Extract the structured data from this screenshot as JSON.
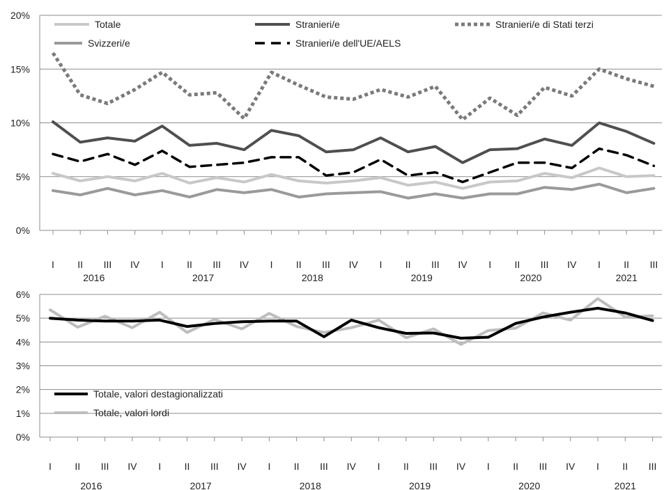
{
  "chart_data": [
    {
      "type": "line",
      "x_quarters": [
        "I",
        "II",
        "III",
        "IV",
        "I",
        "II",
        "III",
        "IV",
        "I",
        "II",
        "III",
        "IV",
        "I",
        "II",
        "III",
        "IV",
        "I",
        "II",
        "III",
        "IV",
        "I",
        "II",
        "III"
      ],
      "x_years": [
        "2016",
        "2017",
        "2018",
        "2019",
        "2020",
        "2021"
      ],
      "y_ticks": [
        "0%",
        "5%",
        "10%",
        "15%",
        "20%"
      ],
      "ylim": [
        0,
        20
      ],
      "y_unit": "%",
      "grid": true,
      "series": [
        {
          "name": "Totale",
          "style": "solid",
          "color": "#c8c8c8",
          "values": [
            5.3,
            4.6,
            5.0,
            4.6,
            5.3,
            4.4,
            4.9,
            4.5,
            5.2,
            4.6,
            4.4,
            4.6,
            4.9,
            4.2,
            4.5,
            3.9,
            4.5,
            4.6,
            5.3,
            4.9,
            5.8,
            5.0,
            5.1
          ]
        },
        {
          "name": "Stranieri/e",
          "style": "solid",
          "color": "#4f4f4f",
          "values": [
            10.1,
            8.2,
            8.6,
            8.3,
            9.7,
            7.9,
            8.1,
            7.5,
            9.3,
            8.8,
            7.3,
            7.5,
            8.6,
            7.3,
            7.8,
            6.3,
            7.5,
            7.6,
            8.5,
            7.9,
            10.0,
            9.2,
            8.1
          ]
        },
        {
          "name": "Stranieri/e di Stati terzi",
          "style": "dotted",
          "color": "#7a7a7a",
          "values": [
            16.5,
            12.6,
            11.8,
            13.1,
            14.7,
            12.6,
            12.8,
            10.4,
            14.7,
            13.5,
            12.4,
            12.2,
            13.1,
            12.4,
            13.4,
            10.3,
            12.3,
            10.7,
            13.3,
            12.5,
            15.0,
            14.1,
            13.4
          ]
        },
        {
          "name": "Svizzeri/e",
          "style": "solid",
          "color": "#9a9a9a",
          "values": [
            3.7,
            3.3,
            3.9,
            3.3,
            3.7,
            3.1,
            3.8,
            3.5,
            3.8,
            3.1,
            3.4,
            3.5,
            3.6,
            3.0,
            3.4,
            3.0,
            3.4,
            3.4,
            4.0,
            3.8,
            4.3,
            3.5,
            3.9
          ]
        },
        {
          "name": "Stranieri/e dell'UE/AELS",
          "style": "dashed",
          "color": "#000000",
          "values": [
            7.1,
            6.4,
            7.1,
            6.1,
            7.4,
            5.9,
            6.1,
            6.3,
            6.8,
            6.8,
            5.1,
            5.4,
            6.6,
            5.1,
            5.4,
            4.5,
            5.4,
            6.3,
            6.3,
            5.8,
            7.6,
            7.0,
            6.0
          ]
        }
      ],
      "legend": {
        "placement": "top",
        "rows": [
          [
            "Totale",
            "Stranieri/e",
            "Stranieri/e di Stati terzi"
          ],
          [
            "Svizzeri/e",
            "Stranieri/e dell'UE/AELS"
          ]
        ]
      }
    },
    {
      "type": "line",
      "x_quarters": [
        "I",
        "II",
        "III",
        "IV",
        "I",
        "II",
        "III",
        "IV",
        "I",
        "II",
        "III",
        "IV",
        "I",
        "II",
        "III",
        "IV",
        "I",
        "II",
        "III",
        "IV",
        "I",
        "II",
        "III"
      ],
      "x_years": [
        "2016",
        "2017",
        "2018",
        "2019",
        "2020",
        "2021"
      ],
      "y_ticks": [
        "0%",
        "1%",
        "2%",
        "3%",
        "4%",
        "5%",
        "6%"
      ],
      "ylim": [
        0,
        6
      ],
      "y_unit": "%",
      "grid": true,
      "series": [
        {
          "name": "Totale, valori lordi",
          "style": "solid",
          "color": "#bdbdbd",
          "values": [
            5.35,
            4.62,
            5.08,
            4.6,
            5.25,
            4.4,
            4.95,
            4.55,
            5.2,
            4.65,
            4.4,
            4.6,
            4.92,
            4.18,
            4.55,
            3.9,
            4.48,
            4.58,
            5.22,
            4.92,
            5.82,
            5.05,
            5.1
          ]
        },
        {
          "name": "Totale, valori destagionalizzati",
          "style": "solid",
          "color": "#000000",
          "values": [
            5.0,
            4.92,
            4.88,
            4.88,
            4.92,
            4.65,
            4.78,
            4.85,
            4.88,
            4.88,
            4.22,
            4.92,
            4.6,
            4.36,
            4.38,
            4.16,
            4.2,
            4.78,
            5.05,
            5.25,
            5.42,
            5.22,
            4.9
          ]
        }
      ],
      "legend": {
        "placement": "lower-left",
        "rows": [
          [
            "Totale, valori destagionalizzati"
          ],
          [
            "Totale, valori lordi"
          ]
        ]
      }
    }
  ]
}
